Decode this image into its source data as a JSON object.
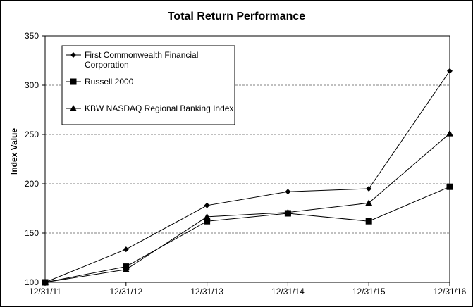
{
  "chart_data": {
    "type": "line",
    "title": "Total Return Performance",
    "xlabel": "",
    "ylabel": "Index Value",
    "x": [
      "12/31/11",
      "12/31/12",
      "12/31/13",
      "12/31/14",
      "12/31/15",
      "12/31/16"
    ],
    "ylim": [
      100,
      350
    ],
    "yticks": [
      100,
      150,
      200,
      250,
      300,
      350
    ],
    "grid": "horizontal dashed",
    "legend_position": "top-left",
    "series": [
      {
        "name": "First Commonwealth Financial Corporation",
        "legend_lines": [
          "First Commonwealth Financial",
          "Corporation"
        ],
        "marker": "diamond",
        "values": [
          100,
          133.5,
          178,
          192,
          195,
          314.5
        ]
      },
      {
        "name": "Russell 2000",
        "legend_lines": [
          "Russell 2000"
        ],
        "marker": "square",
        "values": [
          100,
          116,
          162,
          170,
          162,
          197
        ]
      },
      {
        "name": "KBW NASDAQ Regional Banking Index",
        "legend_lines": [
          "KBW NASDAQ Regional Banking Index"
        ],
        "marker": "triangle",
        "values": [
          100,
          113,
          166.5,
          171,
          180.5,
          251
        ]
      }
    ]
  }
}
